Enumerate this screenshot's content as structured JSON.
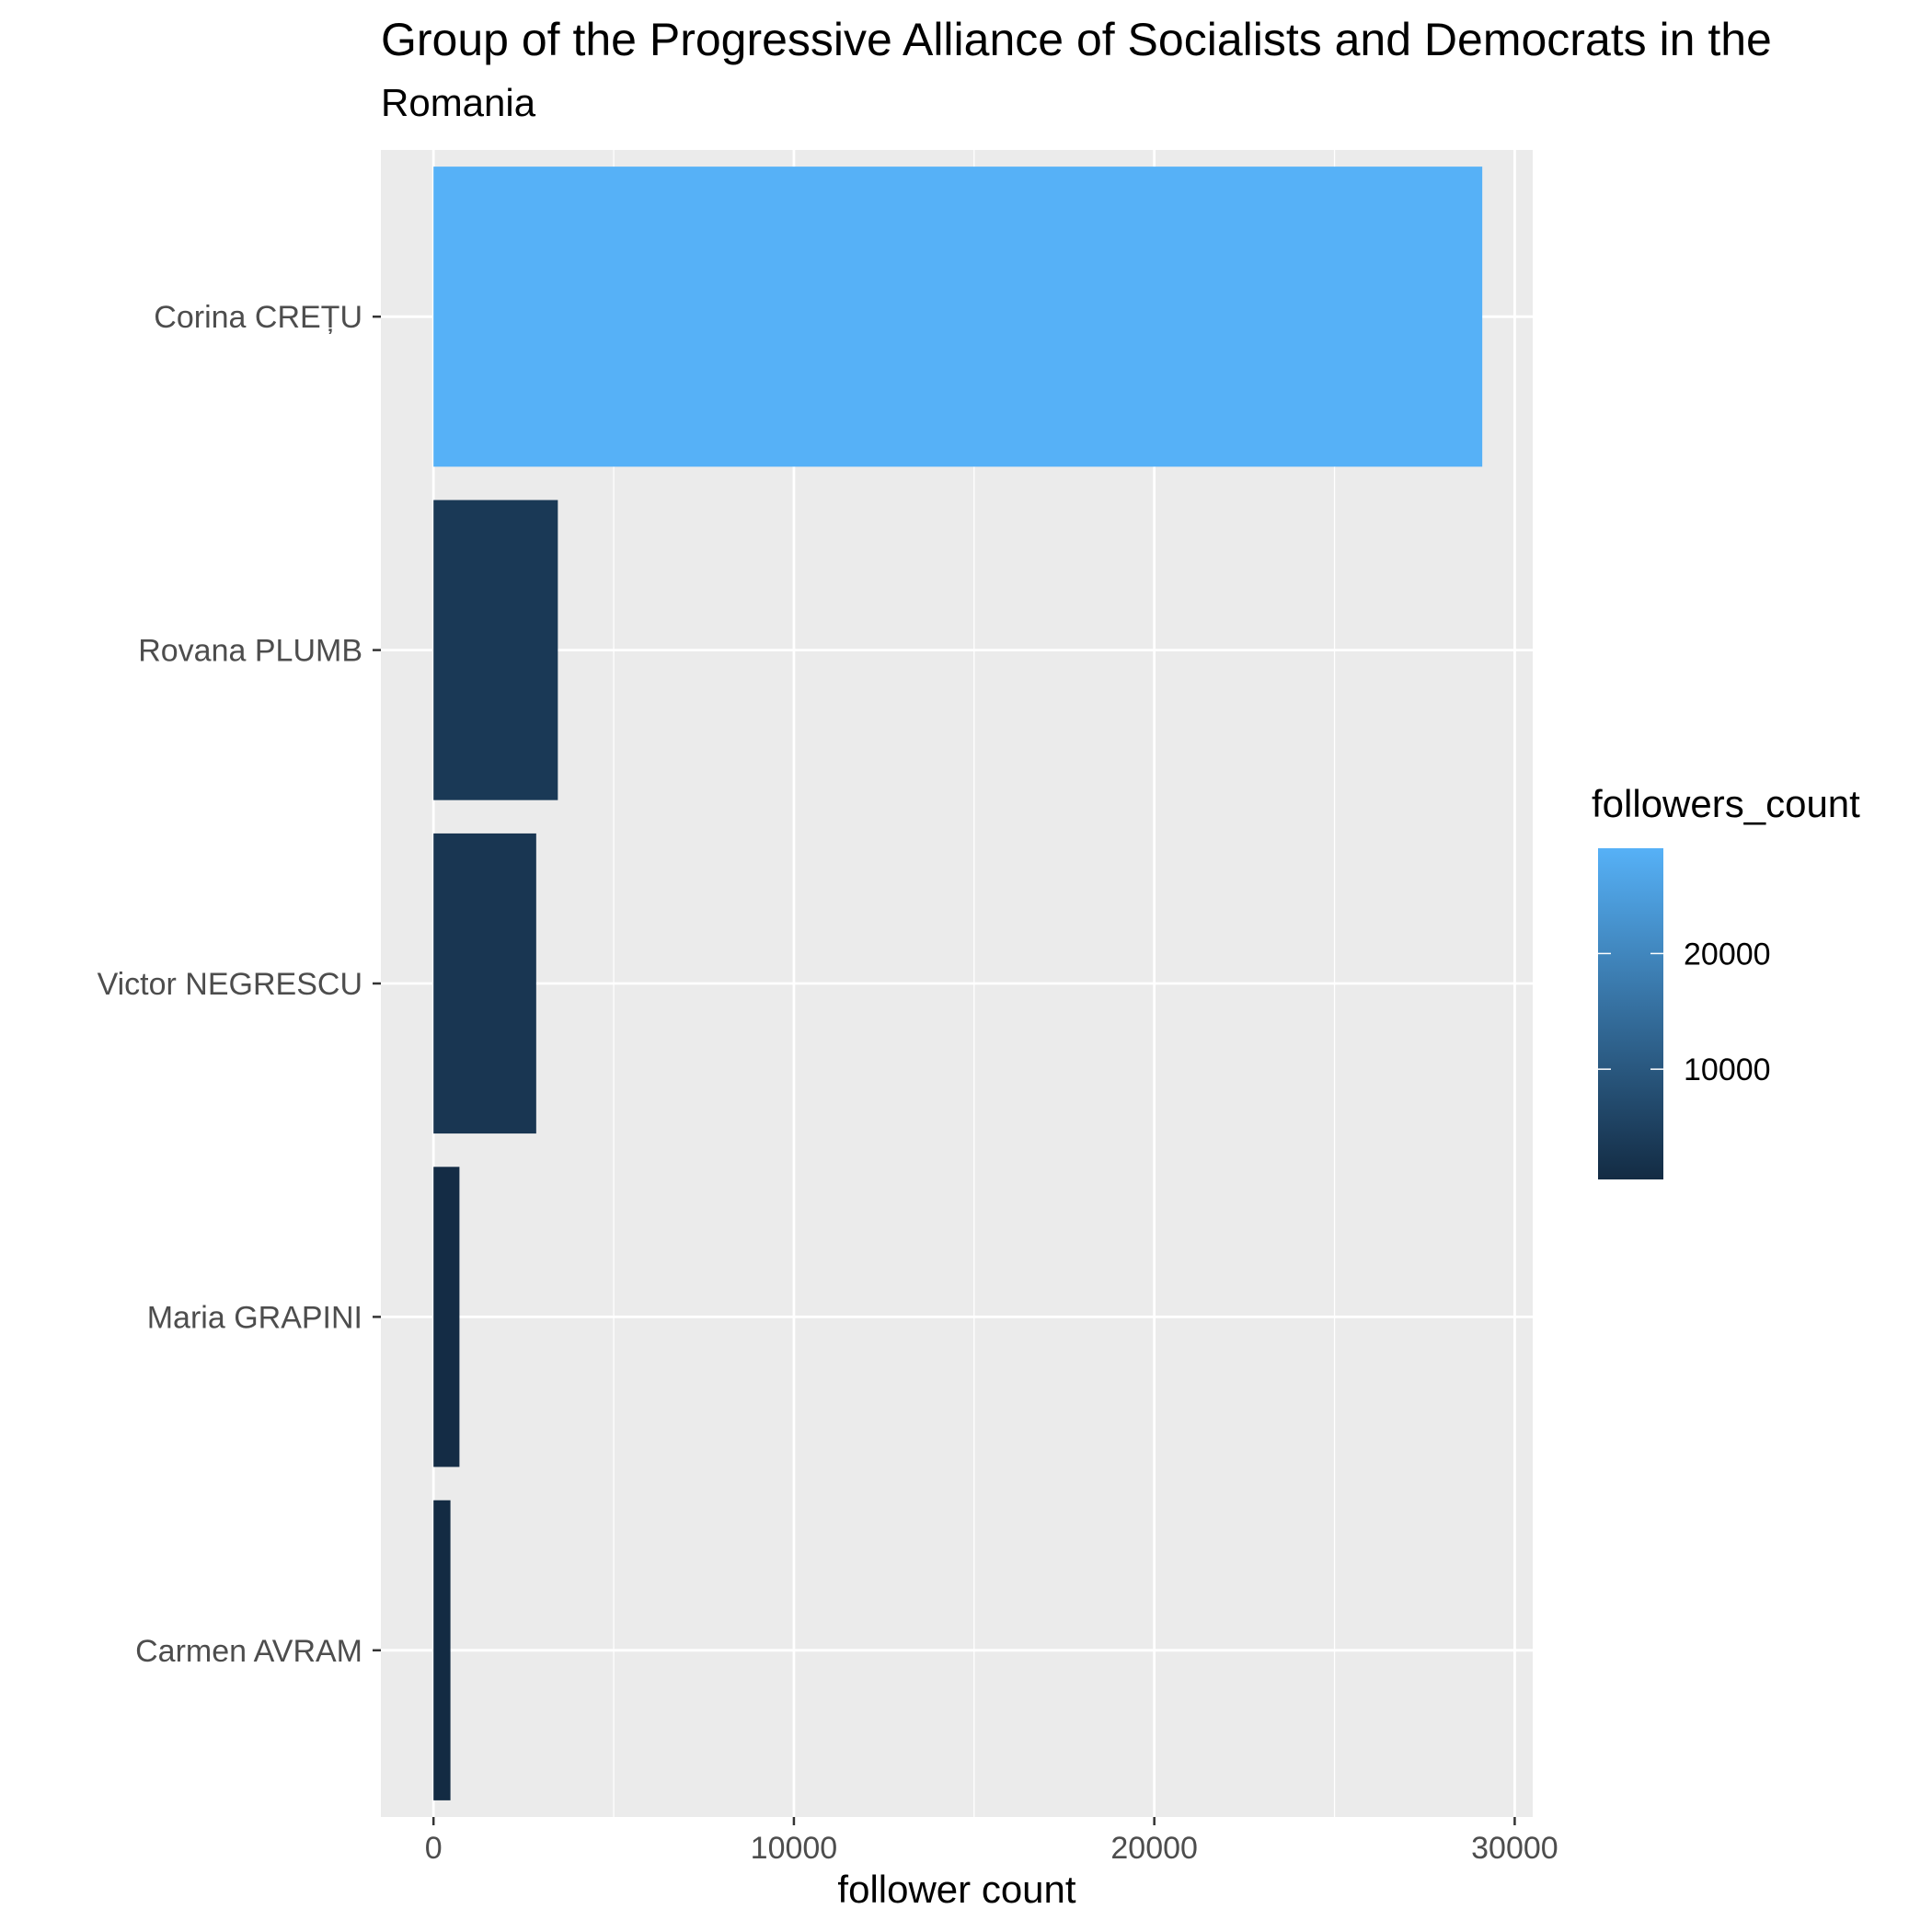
{
  "chart_data": {
    "type": "bar",
    "orientation": "horizontal",
    "title": "Group of the Progressive Alliance of Socialists and Democrats in the",
    "subtitle": "Romania",
    "xlabel": "follower count",
    "ylabel": "",
    "categories": [
      "Corina CREȚU",
      "Rovana PLUMB",
      "Victor NEGRESCU",
      "Maria GRAPINI",
      "Carmen AVRAM"
    ],
    "values": [
      29100,
      3450,
      2850,
      720,
      470
    ],
    "xlim": [
      -1460,
      30500
    ],
    "xticks": [
      0,
      10000,
      20000,
      30000
    ],
    "xtick_labels": [
      "0",
      "10000",
      "20000",
      "30000"
    ],
    "grid": true,
    "fill_scale": {
      "name": "followers_count",
      "low_color": "#132B43",
      "high_color": "#56B1F7",
      "range": [
        470,
        29100
      ],
      "ticks": [
        10000,
        20000
      ],
      "tick_labels": [
        "10000",
        "20000"
      ]
    },
    "legend_position": "right"
  }
}
